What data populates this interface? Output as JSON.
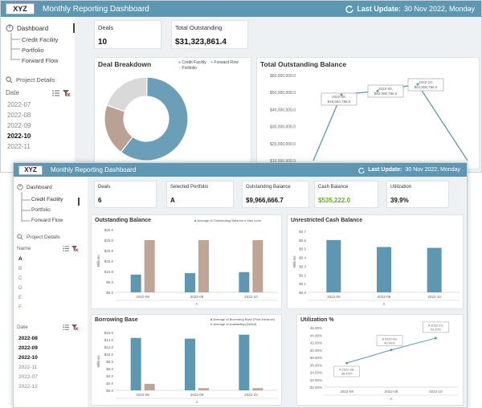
{
  "back": {
    "logo": "XYZ",
    "title": "Monthly Reporting Dashboard",
    "last_update_label": "Last Update:",
    "last_update_value": "30 Nov 2022, Monday",
    "nav": {
      "dashboard": "Dashboard",
      "items": [
        "Credit Facility",
        "Portfolio",
        "Forward Flow"
      ],
      "project_details": "Project Details"
    },
    "date_list": {
      "header": "Date",
      "values": [
        "2022-07",
        "2022-08",
        "2022-09",
        "2022-10",
        "2022-11"
      ]
    },
    "kpis": [
      {
        "label": "Deals",
        "value": "10"
      },
      {
        "label": "Total Outstanding",
        "value": "$31,323,861.4"
      }
    ],
    "deal_breakdown": {
      "title": "Deal Breakdown",
      "legend": [
        "Credit Facility",
        "Forward Flow",
        "Portfolio"
      ]
    },
    "total_outstanding": {
      "title": "Total Outstanding Balance",
      "y_ticks": [
        "$60,000,000.0",
        "$50,000,000.0",
        "$40,000,000.0",
        "$30,000,000.0",
        "$20,000,000.0",
        "$10,000,000.0"
      ],
      "callouts": [
        {
          "date": "2022-08,",
          "value": "$48,684,786.0"
        },
        {
          "date": "2022-09,",
          "value": "$50,908,786.0"
        },
        {
          "date": "2022-10,",
          "value": "$54,808,786.0"
        }
      ]
    }
  },
  "front": {
    "logo": "XYZ",
    "title": "Monthly Reporting Dashboard",
    "last_update_label": "Last Update:",
    "last_update_value": "30 Nov 2022, Monday",
    "nav": {
      "dashboard": "Dashboard",
      "items": [
        "Credit Facility",
        "Portfolio",
        "Forward Flow"
      ],
      "project_details": "Project Details"
    },
    "name_list": {
      "header": "Name",
      "values": [
        "A",
        "B",
        "C",
        "D",
        "E",
        "F"
      ]
    },
    "date_list": {
      "header": "Date",
      "values": [
        "2022-08",
        "2022-09",
        "2022-10",
        "2022-11",
        "2022-07",
        "2022-12"
      ]
    },
    "kpis": [
      {
        "label": "Deals",
        "value": "6"
      },
      {
        "label": "Selected Portfolio",
        "value": "A"
      },
      {
        "label": "Outstanding Balance",
        "value": "$9,966,666.7"
      },
      {
        "label": "Cash Balance",
        "value": "$535,222.0"
      },
      {
        "label": "Utilization",
        "value": "39.9%"
      }
    ],
    "outstanding_balance": {
      "title": "Outstanding Balance",
      "legend": [
        "Average of Outstanding Balance",
        "Max Limit"
      ],
      "ylabel": "Millions",
      "y_ticks": [
        "$30.0",
        "$25.0",
        "$20.0",
        "$15.0",
        "$10.0",
        "$5.0",
        "$0.0"
      ],
      "categories": [
        "2022-08",
        "2022-09",
        "2022-10"
      ],
      "axis_label": "A"
    },
    "unrestricted_cash": {
      "title": "Unrestricted Cash Balance",
      "ylabel": "Millions",
      "y_ticks": [
        "$0.7",
        "$0.6",
        "$0.5",
        "$0.4",
        "$0.3",
        "$0.2",
        "$0.1",
        "$0.0"
      ],
      "categories": [
        "2022-08",
        "2022-09",
        "2022-10"
      ],
      "axis_label": "A"
    },
    "borrowing_base": {
      "title": "Borrowing Base",
      "legend": [
        "Average of Borrowing Base (Post Advance)",
        "Average of Availability/(Deficit)"
      ],
      "ylabel": "Millions",
      "y_ticks": [
        "$16.0",
        "$14.0",
        "$12.0",
        "$10.0",
        "$8.0",
        "$6.0",
        "$4.0",
        "$2.0",
        "$0.0"
      ],
      "categories": [
        "2022-08",
        "2022-09",
        "2022-10"
      ],
      "axis_label": "A"
    },
    "utilization": {
      "title": "Utilization %",
      "y_ticks": [
        "46.00%",
        "44.00%",
        "42.00%",
        "40.00%",
        "38.00%",
        "36.00%",
        "34.00%",
        "32.00%",
        "30.00%"
      ],
      "categories": [
        "2022-08",
        "2022-09",
        "2022-10"
      ],
      "callouts": [
        {
          "date": "A 2022-08,",
          "value": "36.49%"
        },
        {
          "date": "A 2022-09,",
          "value": "40.00%"
        },
        {
          "date": "A 2022-10,",
          "value": "43.20%"
        }
      ],
      "axis_label": "A"
    }
  },
  "chart_data": [
    {
      "type": "pie",
      "title": "Deal Breakdown",
      "categories": [
        "Credit Facility",
        "Forward Flow",
        "Portfolio"
      ],
      "values": [
        60,
        20,
        20
      ],
      "colors": [
        "#6a9fb7",
        "#b9a293",
        "#d9d9d9"
      ]
    },
    {
      "type": "line",
      "title": "Total Outstanding Balance",
      "x": [
        "2022-07",
        "2022-08",
        "2022-09",
        "2022-10",
        "2022-11"
      ],
      "values": [
        10000000,
        48684786,
        50908786,
        54808786,
        10000000
      ],
      "ylim": [
        10000000,
        60000000
      ]
    },
    {
      "type": "bar",
      "title": "Outstanding Balance",
      "categories": [
        "2022-08",
        "2022-09",
        "2022-10"
      ],
      "series": [
        {
          "name": "Average of Outstanding Balance",
          "values": [
            8.5,
            9.2,
            9.7
          ],
          "color": "#5e97b2"
        },
        {
          "name": "Max Limit",
          "values": [
            25.0,
            25.0,
            25.0
          ],
          "color": "#bfa595"
        }
      ],
      "ylim": [
        0,
        30
      ]
    },
    {
      "type": "bar",
      "title": "Unrestricted Cash Balance",
      "categories": [
        "2022-08",
        "2022-09",
        "2022-10"
      ],
      "series": [
        {
          "name": "",
          "values": [
            0.6,
            0.52,
            0.51
          ],
          "color": "#5e97b2"
        }
      ],
      "ylim": [
        0,
        0.7
      ]
    },
    {
      "type": "bar",
      "title": "Borrowing Base",
      "categories": [
        "2022-08",
        "2022-09",
        "2022-10"
      ],
      "series": [
        {
          "name": "Average of Borrowing Base (Post Advance)",
          "values": [
            14.5,
            14.3,
            15.4
          ],
          "color": "#5e97b2"
        },
        {
          "name": "Average of Availability/(Deficit)",
          "values": [
            1.8,
            0.6,
            0.6
          ],
          "color": "#bfa595"
        }
      ],
      "ylim": [
        0,
        16
      ]
    },
    {
      "type": "line",
      "title": "Utilization %",
      "categories": [
        "2022-08",
        "2022-09",
        "2022-10"
      ],
      "values": [
        36.49,
        40.0,
        43.2
      ],
      "ylim": [
        30,
        46
      ]
    }
  ]
}
